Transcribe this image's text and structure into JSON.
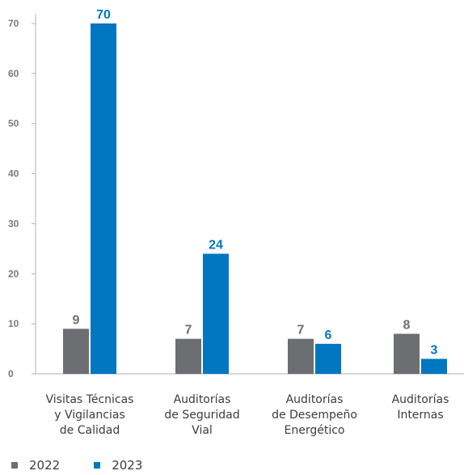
{
  "chart_data": {
    "type": "bar",
    "categories": [
      [
        "Visitas Técnicas",
        "y Vigilancias",
        "de Calidad"
      ],
      [
        "Auditorías",
        "de Seguridad",
        "Vial"
      ],
      [
        "Auditorías",
        "de Desempeño",
        "Energético"
      ],
      [
        "Auditorías",
        "Internas"
      ]
    ],
    "series": [
      {
        "name": "2022",
        "values": [
          9,
          7,
          7,
          8
        ],
        "color": "#6d6e71"
      },
      {
        "name": "2023",
        "values": [
          70,
          24,
          6,
          3
        ],
        "color": "#0077c0"
      }
    ],
    "data_labels": [
      [
        "9",
        "7",
        "7",
        "8"
      ],
      [
        "70",
        "24",
        "6",
        "3"
      ]
    ],
    "label_colors": [
      "#6d6e71",
      "#0077c0"
    ],
    "yticks": [
      0,
      10,
      20,
      30,
      40,
      50,
      60,
      70
    ],
    "ylim": [
      0,
      70
    ],
    "grid": false,
    "legend_position": "bottom-left",
    "axis_color": "#b0b0b0",
    "tick_color": "#7a7a7a"
  }
}
